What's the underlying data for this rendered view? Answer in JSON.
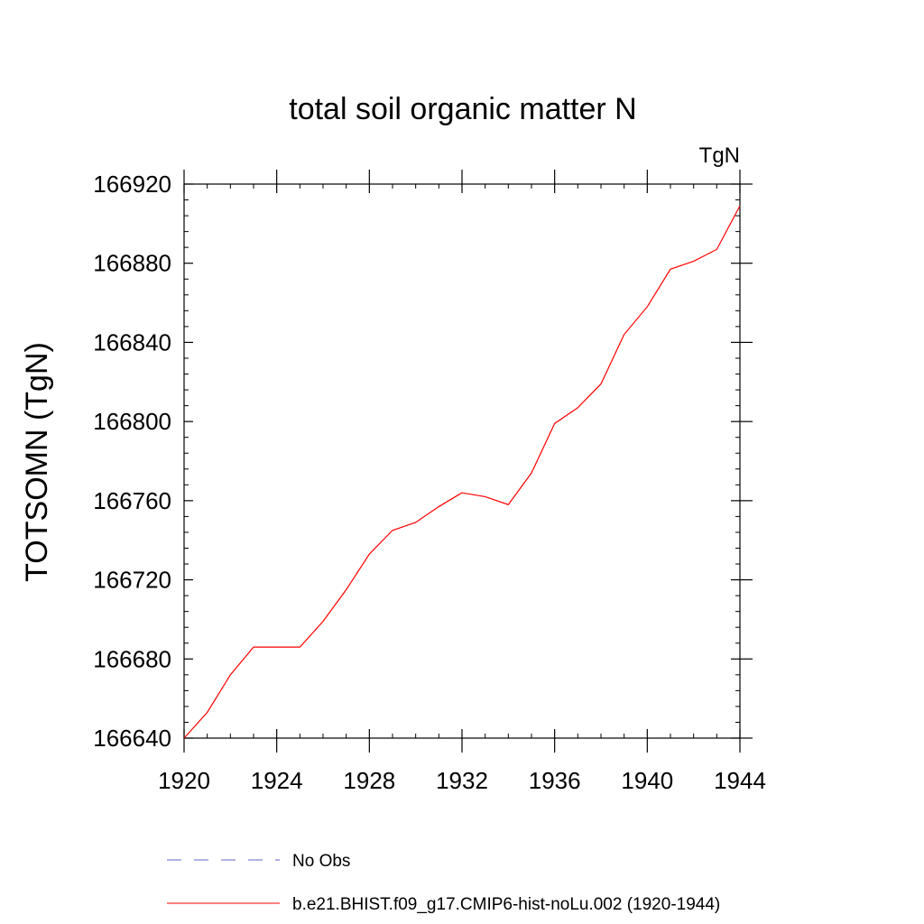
{
  "chart_data": {
    "type": "line",
    "title": "total soil organic matter N",
    "units_label": "TgN",
    "ylabel": "TOTSOMN  (TgN)",
    "xlabel": "",
    "xlim": [
      1920,
      1944
    ],
    "ylim": [
      166640,
      166920
    ],
    "x_ticks": [
      1920,
      1924,
      1928,
      1932,
      1936,
      1940,
      1944
    ],
    "y_ticks": [
      166640,
      166680,
      166720,
      166760,
      166800,
      166840,
      166880,
      166920
    ],
    "x": [
      1920,
      1921,
      1922,
      1923,
      1924,
      1925,
      1926,
      1927,
      1928,
      1929,
      1930,
      1931,
      1932,
      1933,
      1934,
      1935,
      1936,
      1937,
      1938,
      1939,
      1940,
      1941,
      1942,
      1943,
      1944
    ],
    "grid": false,
    "legend_position": "bottom",
    "series": [
      {
        "name": "b.e21.BHIST.f09_g17.CMIP6-hist-noLu.002 (1920-1944)",
        "color": "#ff0000",
        "style": "solid",
        "values": [
          166640,
          166653,
          166672,
          166686,
          166686,
          166686,
          166699,
          166715,
          166733,
          166745,
          166749,
          166757,
          166764,
          166762,
          166758,
          166774,
          166799,
          166807,
          166819,
          166844,
          166858,
          166877,
          166881,
          166887,
          166909
        ]
      }
    ],
    "legend": [
      {
        "label": "No Obs",
        "color": "#6666cc",
        "style": "dashed"
      },
      {
        "label": "b.e21.BHIST.f09_g17.CMIP6-hist-noLu.002 (1920-1944)",
        "color": "#ff0000",
        "style": "solid"
      }
    ]
  }
}
